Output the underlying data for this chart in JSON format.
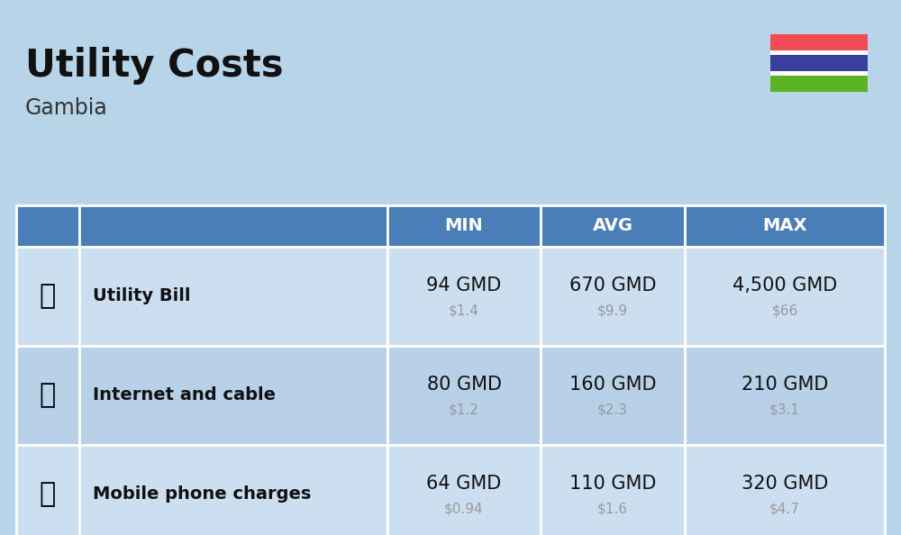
{
  "title": "Utility Costs",
  "subtitle": "Gambia",
  "background_color": "#b8d4e8",
  "header_bg_color": "#4a7eb8",
  "header_text_color": "#ffffff",
  "row_bg_color_odd": "#ccdff0",
  "row_bg_color_even": "#b8d0e8",
  "table_border_color": "#ffffff",
  "rows": [
    {
      "label": "Utility Bill",
      "min_gmd": "94 GMD",
      "min_usd": "$1.4",
      "avg_gmd": "670 GMD",
      "avg_usd": "$9.9",
      "max_gmd": "4,500 GMD",
      "max_usd": "$66"
    },
    {
      "label": "Internet and cable",
      "min_gmd": "80 GMD",
      "min_usd": "$1.2",
      "avg_gmd": "160 GMD",
      "avg_usd": "$2.3",
      "max_gmd": "210 GMD",
      "max_usd": "$3.1"
    },
    {
      "label": "Mobile phone charges",
      "min_gmd": "64 GMD",
      "min_usd": "$0.94",
      "avg_gmd": "110 GMD",
      "avg_usd": "$1.6",
      "max_gmd": "320 GMD",
      "max_usd": "$4.7"
    }
  ],
  "flag_red": "#f24b55",
  "flag_blue": "#3a3f9e",
  "flag_green": "#5cb320",
  "flag_white": "#ffffff",
  "gmd_fontsize": 15,
  "usd_fontsize": 11,
  "label_fontsize": 14,
  "header_fontsize": 14,
  "title_fontsize": 30,
  "subtitle_fontsize": 17,
  "usd_color": "#999999",
  "title_color": "#111111",
  "subtitle_color": "#333333",
  "label_color": "#111111"
}
